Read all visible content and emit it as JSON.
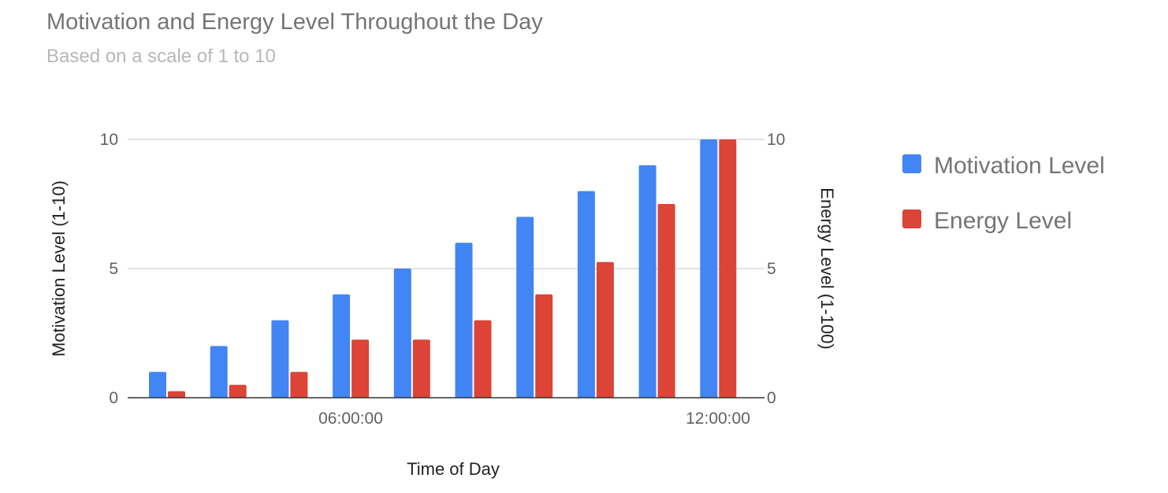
{
  "chart_data": {
    "type": "bar",
    "title": "Motivation and Energy Level Throughout the Day",
    "subtitle": "Based on a scale of 1 to 10",
    "xlabel": "Time of Day",
    "ylabel_left": "Motivation Level (1-10)",
    "ylabel_right": "Energy Level (1-100)",
    "x_tick_labels": [
      "06:00:00",
      "12:00:00"
    ],
    "y_ticks_left": [
      "0",
      "5",
      "10"
    ],
    "y_ticks_right": [
      "0",
      "5",
      "10"
    ],
    "ylim": [
      0,
      10
    ],
    "grid": true,
    "legend_position": "right",
    "series": [
      {
        "name": "Motivation Level",
        "color": "#4285f4",
        "axis": "left",
        "values": [
          1,
          2,
          3,
          4,
          5,
          6,
          7,
          8,
          9,
          10
        ]
      },
      {
        "name": "Energy Level",
        "color": "#db4437",
        "axis": "right",
        "values": [
          0.25,
          0.5,
          1,
          2.25,
          2.25,
          3,
          4,
          5.25,
          7.5,
          10
        ]
      }
    ]
  }
}
